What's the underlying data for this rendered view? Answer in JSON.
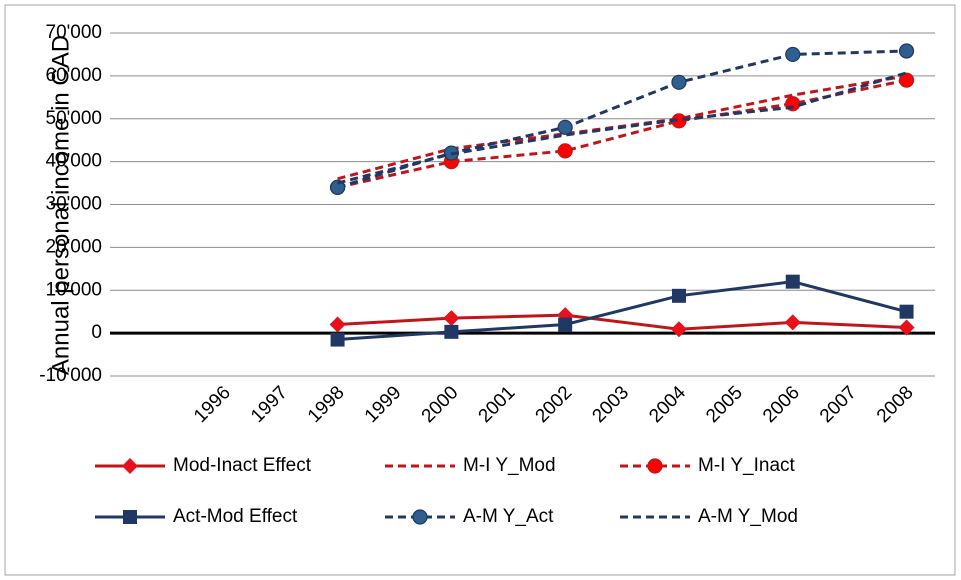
{
  "chart_data": {
    "type": "line",
    "y_label": "Annual personal income in CAD",
    "xlim": [
      1994,
      2008.5
    ],
    "xticks": [
      1996,
      1997,
      1998,
      1999,
      2000,
      2001,
      2002,
      2003,
      2004,
      2005,
      2006,
      2007,
      2008
    ],
    "ylim": [
      -10000,
      70000
    ],
    "yticks": [
      {
        "value": -10000,
        "label": "-10'000"
      },
      0,
      {
        "value": 10000,
        "label": "10'000"
      },
      {
        "value": 20000,
        "label": "20'000"
      },
      {
        "value": 30000,
        "label": "30'000"
      },
      {
        "value": 40000,
        "label": "40'000"
      },
      {
        "value": 50000,
        "label": "50'000"
      },
      {
        "value": 60000,
        "label": "60'000"
      },
      {
        "value": 70000,
        "label": "70'000"
      }
    ],
    "grid": true,
    "legend": "bottom",
    "series": [
      {
        "name": "Mod-Inact Effect",
        "color": "#c0161b",
        "marker_color": "#e8101a",
        "marker": "diamond",
        "dash": false,
        "x": [
          1998,
          2000,
          2002,
          2004,
          2006,
          2008
        ],
        "values": [
          2000,
          3500,
          4200,
          900,
          2500,
          1300
        ]
      },
      {
        "name": "M-I Y_Mod",
        "color": "#c0161b",
        "marker": null,
        "dash": true,
        "x": [
          1998,
          2000,
          2002,
          2004,
          2006,
          2008
        ],
        "values": [
          36000,
          43000,
          46500,
          50000,
          55500,
          60000
        ]
      },
      {
        "name": "M-I Y_Inact",
        "color": "#c0161b",
        "marker_color": "#ff0000",
        "marker": "circle",
        "dash": true,
        "x": [
          1998,
          2000,
          2002,
          2004,
          2006,
          2008
        ],
        "values": [
          34000,
          40000,
          42500,
          49500,
          53500,
          59000
        ]
      },
      {
        "name": "Act-Mod Effect",
        "color": "#1f3864",
        "marker_color": "#1f3864",
        "marker": "square",
        "dash": false,
        "x": [
          1998,
          2000,
          2002,
          2004,
          2006,
          2008
        ],
        "values": [
          -1500,
          300,
          2000,
          8700,
          12000,
          5000
        ]
      },
      {
        "name": "A-M  Y_Act",
        "color": "#1f3864",
        "marker_color": "#2e5f8f",
        "marker": "circle",
        "dash": true,
        "x": [
          1998,
          2000,
          2002,
          2004,
          2006,
          2008
        ],
        "values": [
          34000,
          42000,
          48000,
          58500,
          65000,
          65800
        ]
      },
      {
        "name": "A-M Y_Mod",
        "color": "#1f3864",
        "marker": null,
        "dash": true,
        "x": [
          1998,
          2000,
          2002,
          2004,
          2006,
          2008
        ],
        "values": [
          35000,
          41800,
          46200,
          49800,
          52700,
          60700
        ]
      }
    ]
  }
}
